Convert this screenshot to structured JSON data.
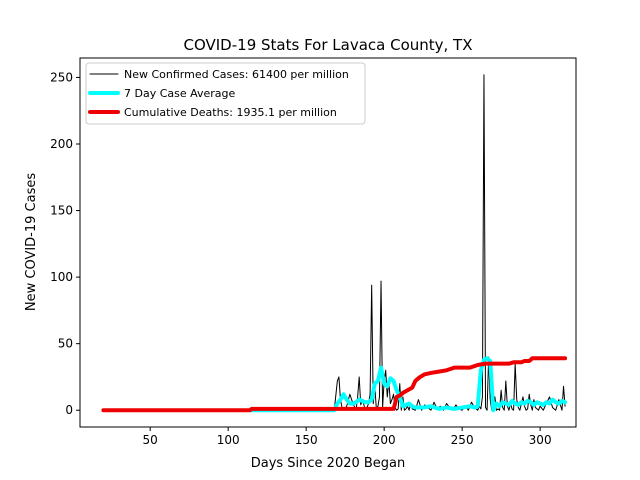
{
  "chart_data": {
    "type": "line",
    "title": "COVID-19 Stats For Lavaca County, TX",
    "xlabel": "Days Since 2020 Began",
    "ylabel": "New COVID-19 Cases",
    "xlim": [
      5,
      323
    ],
    "ylim": [
      -12.6,
      264.6
    ],
    "xticks": [
      50,
      100,
      150,
      200,
      250,
      300
    ],
    "yticks": [
      0,
      50,
      100,
      150,
      200,
      250
    ],
    "grid": false,
    "legend_position": "top-left",
    "series": [
      {
        "name": "New Confirmed Cases: 61400 per million",
        "color": "#000000",
        "line_width": 1,
        "x": [
          20,
          100,
          168,
          170,
          171,
          172,
          173,
          174,
          176,
          178,
          180,
          182,
          183,
          184,
          185,
          186,
          188,
          189,
          190,
          191,
          192,
          193,
          194,
          195,
          196,
          197,
          198,
          199,
          200,
          201,
          202,
          203,
          204,
          205,
          206,
          207,
          208,
          209,
          210,
          211,
          212,
          213,
          214,
          215,
          216,
          217,
          218,
          220,
          222,
          224,
          226,
          228,
          230,
          232,
          234,
          236,
          238,
          240,
          242,
          244,
          246,
          248,
          250,
          252,
          254,
          256,
          258,
          260,
          261,
          262,
          263,
          264,
          265,
          266,
          267,
          268,
          269,
          270,
          271,
          272,
          273,
          274,
          275,
          276,
          277,
          278,
          279,
          280,
          281,
          282,
          283,
          284,
          285,
          286,
          287,
          288,
          289,
          290,
          291,
          292,
          293,
          294,
          295,
          296,
          297,
          298,
          299,
          300,
          302,
          304,
          306,
          308,
          310,
          312,
          314,
          315,
          316
        ],
        "y": [
          0,
          0,
          0,
          22,
          25,
          8,
          2,
          0,
          3,
          12,
          5,
          0,
          10,
          25,
          4,
          8,
          0,
          2,
          5,
          12,
          94,
          5,
          18,
          1,
          3,
          10,
          97,
          2,
          22,
          30,
          10,
          22,
          5,
          8,
          12,
          2,
          0,
          1,
          20,
          0,
          10,
          0,
          1,
          3,
          0,
          5,
          1,
          0,
          8,
          0,
          4,
          2,
          0,
          6,
          1,
          3,
          0,
          5,
          2,
          0,
          4,
          1,
          0,
          3,
          0,
          6,
          2,
          0,
          3,
          1,
          10,
          252,
          2,
          0,
          40,
          8,
          0,
          3,
          10,
          0,
          1,
          0,
          15,
          2,
          0,
          22,
          3,
          0,
          5,
          1,
          0,
          35,
          8,
          2,
          0,
          5,
          10,
          3,
          0,
          1,
          12,
          4,
          0,
          8,
          2,
          1,
          0,
          3,
          0,
          5,
          10,
          2,
          0,
          8,
          0,
          18,
          3
        ]
      },
      {
        "name": "7 Day Case Average",
        "color": "#00ffff",
        "line_width": 4,
        "x": [
          115,
          140,
          160,
          168,
          170,
          172,
          174,
          176,
          178,
          180,
          182,
          184,
          186,
          188,
          190,
          192,
          194,
          196,
          198,
          200,
          202,
          204,
          206,
          208,
          210,
          212,
          214,
          216,
          218,
          220,
          225,
          230,
          235,
          240,
          245,
          250,
          255,
          258,
          260,
          262,
          264,
          266,
          268,
          270,
          272,
          274,
          276,
          278,
          280,
          282,
          284,
          286,
          288,
          290,
          292,
          294,
          296,
          298,
          300,
          302,
          304,
          306,
          308,
          310,
          312,
          314,
          316
        ],
        "y": [
          0,
          0,
          0,
          0,
          5,
          8,
          12,
          8,
          5,
          5,
          6,
          8,
          7,
          6,
          6,
          8,
          20,
          22,
          32,
          20,
          18,
          24,
          22,
          15,
          10,
          3,
          4,
          5,
          3,
          2,
          2,
          3,
          1,
          2,
          1,
          2,
          3,
          2,
          3,
          30,
          38,
          39,
          37,
          0,
          5,
          3,
          6,
          5,
          4,
          7,
          5,
          4,
          6,
          5,
          7,
          6,
          4,
          6,
          5,
          4,
          6,
          5,
          8,
          6,
          5,
          7,
          6
        ]
      },
      {
        "name": "Cumulative Deaths: 1935.1 per million",
        "color": "#ee0000",
        "line_width": 4,
        "x": [
          20,
          114,
          115,
          168,
          169,
          205,
          206,
          207,
          208,
          210,
          212,
          215,
          218,
          220,
          223,
          226,
          230,
          235,
          240,
          245,
          250,
          255,
          260,
          265,
          270,
          275,
          280,
          283,
          288,
          290,
          293,
          295,
          300,
          316
        ],
        "y": [
          0,
          0,
          1,
          1,
          1,
          1,
          1,
          5,
          10,
          11,
          13,
          15,
          17,
          22,
          25,
          27,
          28,
          29,
          30,
          32,
          32,
          32,
          34,
          35,
          35,
          35,
          35,
          36,
          36,
          37,
          37,
          39,
          39,
          39
        ]
      }
    ]
  }
}
